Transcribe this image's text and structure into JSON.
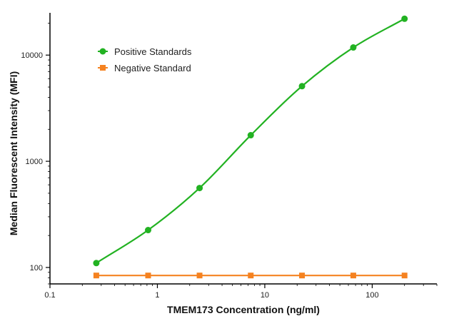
{
  "chart_data": {
    "type": "line",
    "xlabel": "TMEM173 Concentration (ng/ml)",
    "ylabel": "Median Fluorescent Intensity (MFI)",
    "x_scale": "log",
    "y_scale": "log",
    "xlim": [
      0.1,
      400
    ],
    "ylim": [
      70,
      25000
    ],
    "x_ticks": [
      0.1,
      1,
      10,
      100
    ],
    "x_tick_labels": [
      "0.1",
      "1",
      "10",
      "100"
    ],
    "y_ticks": [
      100,
      1000,
      10000
    ],
    "y_tick_labels": [
      "100",
      "1000",
      "10000"
    ],
    "grid": false,
    "legend_position": "top-left",
    "series": [
      {
        "name": "Positive Standards",
        "color": "#22b222",
        "marker": "circle",
        "fit": "4PL curve",
        "x": [
          0.27,
          0.82,
          2.47,
          7.4,
          22.2,
          66.7,
          200
        ],
        "y": [
          110,
          225,
          560,
          1760,
          5100,
          11800,
          22000
        ]
      },
      {
        "name": "Negative Standard",
        "color": "#f58220",
        "marker": "square",
        "fit": "line",
        "x": [
          0.27,
          0.82,
          2.47,
          7.4,
          22.2,
          66.7,
          200
        ],
        "y": [
          84,
          84,
          84,
          84,
          84,
          84,
          84
        ]
      }
    ]
  }
}
